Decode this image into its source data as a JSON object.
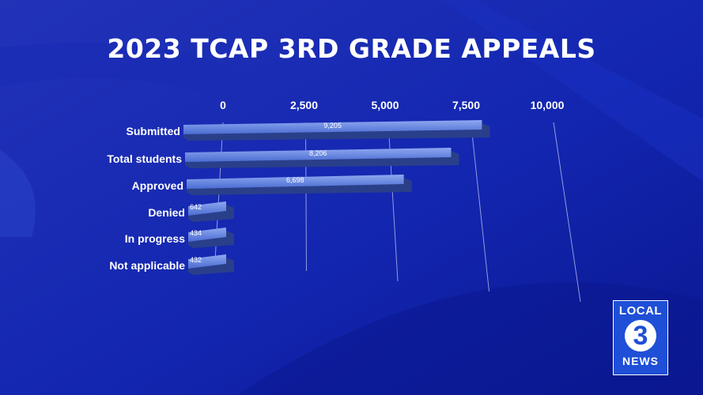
{
  "title": "2023 TCAP 3RD GRADE APPEALS",
  "logo": {
    "top": "LOCAL",
    "number": "3",
    "bottom": "NEWS"
  },
  "chart_data": {
    "type": "bar",
    "orientation": "horizontal",
    "title": "2023 TCAP 3RD GRADE APPEALS",
    "categories": [
      "Submitted",
      "Total students",
      "Approved",
      "Denied",
      "In progress",
      "Not applicable"
    ],
    "values": [
      9205,
      8206,
      6698,
      642,
      434,
      432
    ],
    "value_labels": [
      "9,205",
      "8,206",
      "6,698",
      "642",
      "434",
      "432"
    ],
    "x_ticks": [
      "0",
      "2,500",
      "5,000",
      "7,500",
      "10,000"
    ],
    "tick_values": [
      0,
      2500,
      5000,
      7500,
      10000
    ],
    "xlim": [
      0,
      10000
    ],
    "grid": true,
    "colors": {
      "bar": "#4f72d6",
      "bar_dark": "#2a3f8a",
      "background": "#0d1fa8"
    }
  }
}
